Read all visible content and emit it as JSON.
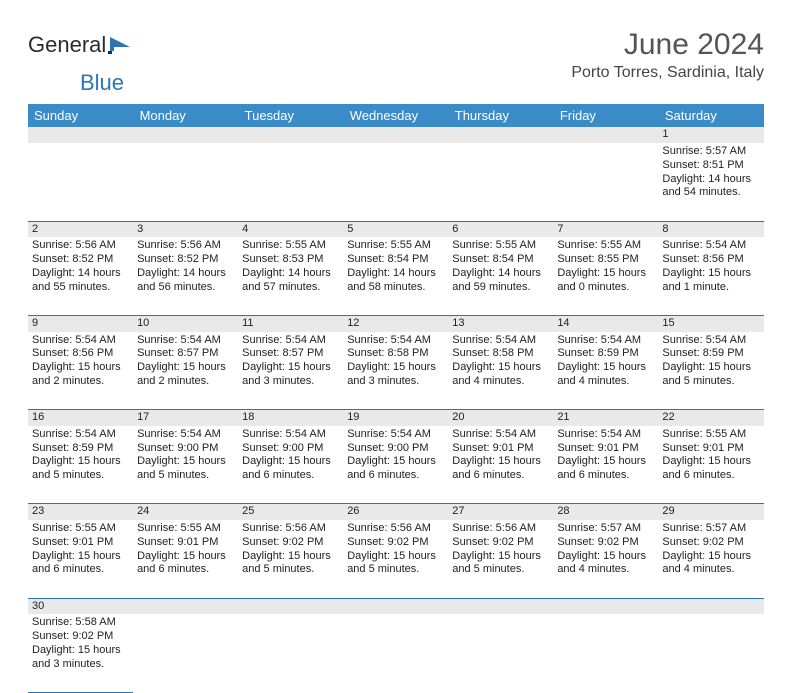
{
  "brand": {
    "text1": "General",
    "text2": "Blue"
  },
  "title": "June 2024",
  "location": "Porto Torres, Sardinia, Italy",
  "dow": [
    "Sunday",
    "Monday",
    "Tuesday",
    "Wednesday",
    "Thursday",
    "Friday",
    "Saturday"
  ],
  "colors": {
    "header_bg": "#3b8bc9",
    "header_fg": "#ffffff",
    "daynum_bg": "#e9e9e9",
    "rule": "#2e75b6",
    "brand_blue": "#2e75b6",
    "title_fg": "#555555"
  },
  "weeks": [
    [
      null,
      null,
      null,
      null,
      null,
      null,
      {
        "n": "1",
        "sr": "Sunrise: 5:57 AM",
        "ss": "Sunset: 8:51 PM",
        "dl": "Daylight: 14 hours and 54 minutes."
      }
    ],
    [
      {
        "n": "2",
        "sr": "Sunrise: 5:56 AM",
        "ss": "Sunset: 8:52 PM",
        "dl": "Daylight: 14 hours and 55 minutes."
      },
      {
        "n": "3",
        "sr": "Sunrise: 5:56 AM",
        "ss": "Sunset: 8:52 PM",
        "dl": "Daylight: 14 hours and 56 minutes."
      },
      {
        "n": "4",
        "sr": "Sunrise: 5:55 AM",
        "ss": "Sunset: 8:53 PM",
        "dl": "Daylight: 14 hours and 57 minutes."
      },
      {
        "n": "5",
        "sr": "Sunrise: 5:55 AM",
        "ss": "Sunset: 8:54 PM",
        "dl": "Daylight: 14 hours and 58 minutes."
      },
      {
        "n": "6",
        "sr": "Sunrise: 5:55 AM",
        "ss": "Sunset: 8:54 PM",
        "dl": "Daylight: 14 hours and 59 minutes."
      },
      {
        "n": "7",
        "sr": "Sunrise: 5:55 AM",
        "ss": "Sunset: 8:55 PM",
        "dl": "Daylight: 15 hours and 0 minutes."
      },
      {
        "n": "8",
        "sr": "Sunrise: 5:54 AM",
        "ss": "Sunset: 8:56 PM",
        "dl": "Daylight: 15 hours and 1 minute."
      }
    ],
    [
      {
        "n": "9",
        "sr": "Sunrise: 5:54 AM",
        "ss": "Sunset: 8:56 PM",
        "dl": "Daylight: 15 hours and 2 minutes."
      },
      {
        "n": "10",
        "sr": "Sunrise: 5:54 AM",
        "ss": "Sunset: 8:57 PM",
        "dl": "Daylight: 15 hours and 2 minutes."
      },
      {
        "n": "11",
        "sr": "Sunrise: 5:54 AM",
        "ss": "Sunset: 8:57 PM",
        "dl": "Daylight: 15 hours and 3 minutes."
      },
      {
        "n": "12",
        "sr": "Sunrise: 5:54 AM",
        "ss": "Sunset: 8:58 PM",
        "dl": "Daylight: 15 hours and 3 minutes."
      },
      {
        "n": "13",
        "sr": "Sunrise: 5:54 AM",
        "ss": "Sunset: 8:58 PM",
        "dl": "Daylight: 15 hours and 4 minutes."
      },
      {
        "n": "14",
        "sr": "Sunrise: 5:54 AM",
        "ss": "Sunset: 8:59 PM",
        "dl": "Daylight: 15 hours and 4 minutes."
      },
      {
        "n": "15",
        "sr": "Sunrise: 5:54 AM",
        "ss": "Sunset: 8:59 PM",
        "dl": "Daylight: 15 hours and 5 minutes."
      }
    ],
    [
      {
        "n": "16",
        "sr": "Sunrise: 5:54 AM",
        "ss": "Sunset: 8:59 PM",
        "dl": "Daylight: 15 hours and 5 minutes."
      },
      {
        "n": "17",
        "sr": "Sunrise: 5:54 AM",
        "ss": "Sunset: 9:00 PM",
        "dl": "Daylight: 15 hours and 5 minutes."
      },
      {
        "n": "18",
        "sr": "Sunrise: 5:54 AM",
        "ss": "Sunset: 9:00 PM",
        "dl": "Daylight: 15 hours and 6 minutes."
      },
      {
        "n": "19",
        "sr": "Sunrise: 5:54 AM",
        "ss": "Sunset: 9:00 PM",
        "dl": "Daylight: 15 hours and 6 minutes."
      },
      {
        "n": "20",
        "sr": "Sunrise: 5:54 AM",
        "ss": "Sunset: 9:01 PM",
        "dl": "Daylight: 15 hours and 6 minutes."
      },
      {
        "n": "21",
        "sr": "Sunrise: 5:54 AM",
        "ss": "Sunset: 9:01 PM",
        "dl": "Daylight: 15 hours and 6 minutes."
      },
      {
        "n": "22",
        "sr": "Sunrise: 5:55 AM",
        "ss": "Sunset: 9:01 PM",
        "dl": "Daylight: 15 hours and 6 minutes."
      }
    ],
    [
      {
        "n": "23",
        "sr": "Sunrise: 5:55 AM",
        "ss": "Sunset: 9:01 PM",
        "dl": "Daylight: 15 hours and 6 minutes."
      },
      {
        "n": "24",
        "sr": "Sunrise: 5:55 AM",
        "ss": "Sunset: 9:01 PM",
        "dl": "Daylight: 15 hours and 6 minutes."
      },
      {
        "n": "25",
        "sr": "Sunrise: 5:56 AM",
        "ss": "Sunset: 9:02 PM",
        "dl": "Daylight: 15 hours and 5 minutes."
      },
      {
        "n": "26",
        "sr": "Sunrise: 5:56 AM",
        "ss": "Sunset: 9:02 PM",
        "dl": "Daylight: 15 hours and 5 minutes."
      },
      {
        "n": "27",
        "sr": "Sunrise: 5:56 AM",
        "ss": "Sunset: 9:02 PM",
        "dl": "Daylight: 15 hours and 5 minutes."
      },
      {
        "n": "28",
        "sr": "Sunrise: 5:57 AM",
        "ss": "Sunset: 9:02 PM",
        "dl": "Daylight: 15 hours and 4 minutes."
      },
      {
        "n": "29",
        "sr": "Sunrise: 5:57 AM",
        "ss": "Sunset: 9:02 PM",
        "dl": "Daylight: 15 hours and 4 minutes."
      }
    ],
    [
      {
        "n": "30",
        "sr": "Sunrise: 5:58 AM",
        "ss": "Sunset: 9:02 PM",
        "dl": "Daylight: 15 hours and 3 minutes."
      },
      null,
      null,
      null,
      null,
      null,
      null
    ]
  ]
}
